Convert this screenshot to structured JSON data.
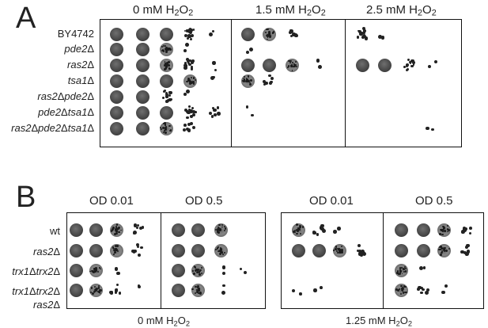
{
  "panel_a": {
    "letter": "A",
    "columns": [
      {
        "prefix": "0 mM H",
        "sub": "2",
        "mid": "O",
        "sub2": "2"
      },
      {
        "prefix": "1.5 mM H",
        "sub": "2",
        "mid": "O",
        "sub2": "2"
      },
      {
        "prefix": "2.5 mM H",
        "sub": "2",
        "mid": "O",
        "sub2": "2"
      }
    ],
    "strains": [
      {
        "parts": [
          {
            "t": "BY4742",
            "it": false
          }
        ]
      },
      {
        "parts": [
          {
            "t": "pde2",
            "it": true
          },
          {
            "t": "Δ",
            "it": false
          }
        ]
      },
      {
        "parts": [
          {
            "t": "ras2",
            "it": true
          },
          {
            "t": "Δ",
            "it": false
          }
        ]
      },
      {
        "parts": [
          {
            "t": "tsa1",
            "it": true
          },
          {
            "t": "Δ",
            "it": false
          }
        ]
      },
      {
        "parts": [
          {
            "t": "ras2",
            "it": true
          },
          {
            "t": "Δ",
            "it": false
          },
          {
            "t": "pde2",
            "it": true
          },
          {
            "t": "Δ",
            "it": false
          }
        ]
      },
      {
        "parts": [
          {
            "t": "pde2",
            "it": true
          },
          {
            "t": "Δ",
            "it": false
          },
          {
            "t": "tsa1",
            "it": true
          },
          {
            "t": "Δ",
            "it": false
          }
        ]
      },
      {
        "parts": [
          {
            "t": "ras2",
            "it": true
          },
          {
            "t": "Δ",
            "it": false
          },
          {
            "t": "pde2",
            "it": true
          },
          {
            "t": "Δ",
            "it": false
          },
          {
            "t": "tsa1",
            "it": true
          },
          {
            "t": "Δ",
            "it": false
          }
        ]
      }
    ]
  },
  "panel_b": {
    "letter": "B",
    "headers": [
      "OD 0.01",
      "OD 0.5",
      "OD 0.01",
      "OD 0.5"
    ],
    "strains": [
      {
        "lines": [
          [
            {
              "t": "wt",
              "it": false
            }
          ]
        ]
      },
      {
        "lines": [
          [
            {
              "t": "ras2",
              "it": true
            },
            {
              "t": "Δ",
              "it": false
            }
          ]
        ]
      },
      {
        "lines": [
          [
            {
              "t": "trx1",
              "it": true
            },
            {
              "t": "Δ",
              "it": false
            },
            {
              "t": "trx2",
              "it": true
            },
            {
              "t": "Δ",
              "it": false
            }
          ]
        ]
      },
      {
        "lines": [
          [
            {
              "t": "trx1",
              "it": true
            },
            {
              "t": "Δ",
              "it": false
            },
            {
              "t": "trx2",
              "it": true
            },
            {
              "t": "Δ",
              "it": false
            }
          ],
          [
            {
              "t": "ras2",
              "it": true
            },
            {
              "t": "Δ",
              "it": false
            }
          ]
        ]
      }
    ],
    "footers": [
      {
        "prefix": "0 mM H",
        "sub": "2",
        "mid": "O",
        "sub2": "2"
      },
      {
        "prefix": "1.25 mM H",
        "sub": "2",
        "mid": "O",
        "sub2": "2"
      }
    ]
  },
  "plates": {
    "a_0": [
      [
        5,
        5,
        5,
        3,
        1
      ],
      [
        5,
        5,
        4,
        1,
        0
      ],
      [
        5,
        5,
        4,
        3,
        1
      ],
      [
        5,
        5,
        5,
        4,
        1
      ],
      [
        5,
        5,
        3,
        1,
        0
      ],
      [
        5,
        5,
        5,
        3,
        2
      ],
      [
        5,
        5,
        4,
        2,
        0
      ]
    ],
    "a_15": [
      [
        5,
        4,
        2,
        0,
        0
      ],
      [
        1,
        0,
        0,
        0,
        0
      ],
      [
        5,
        5,
        4,
        1,
        0
      ],
      [
        4,
        2,
        0,
        0,
        0
      ],
      [
        0,
        0,
        0,
        0,
        0
      ],
      [
        1,
        0,
        0,
        0,
        0
      ],
      [
        0,
        0,
        0,
        0,
        0
      ]
    ],
    "a_25": [
      [
        3,
        1,
        0,
        0,
        0
      ],
      [
        0,
        0,
        0,
        0,
        0
      ],
      [
        5,
        5,
        3,
        1,
        0
      ],
      [
        0,
        0,
        0,
        0,
        0
      ],
      [
        0,
        0,
        0,
        0,
        0
      ],
      [
        0,
        0,
        0,
        0,
        0
      ],
      [
        0,
        0,
        0,
        1,
        0
      ]
    ],
    "b_0_a": [
      [
        5,
        5,
        4,
        2
      ],
      [
        5,
        5,
        4,
        2
      ],
      [
        5,
        4,
        1,
        0
      ],
      [
        5,
        4,
        2,
        1
      ]
    ],
    "b_0_b": [
      [
        5,
        5,
        4,
        0
      ],
      [
        5,
        5,
        4,
        0
      ],
      [
        5,
        4,
        1,
        1
      ],
      [
        5,
        4,
        1,
        0
      ]
    ],
    "b_125_a": [
      [
        4,
        2,
        1,
        0
      ],
      [
        5,
        5,
        4,
        2
      ],
      [
        0,
        0,
        0,
        0
      ],
      [
        1,
        1,
        0,
        0
      ]
    ],
    "b_125_b": [
      [
        5,
        5,
        4,
        2
      ],
      [
        5,
        5,
        4,
        2
      ],
      [
        4,
        1,
        0,
        0
      ],
      [
        4,
        2,
        1,
        0
      ]
    ]
  }
}
